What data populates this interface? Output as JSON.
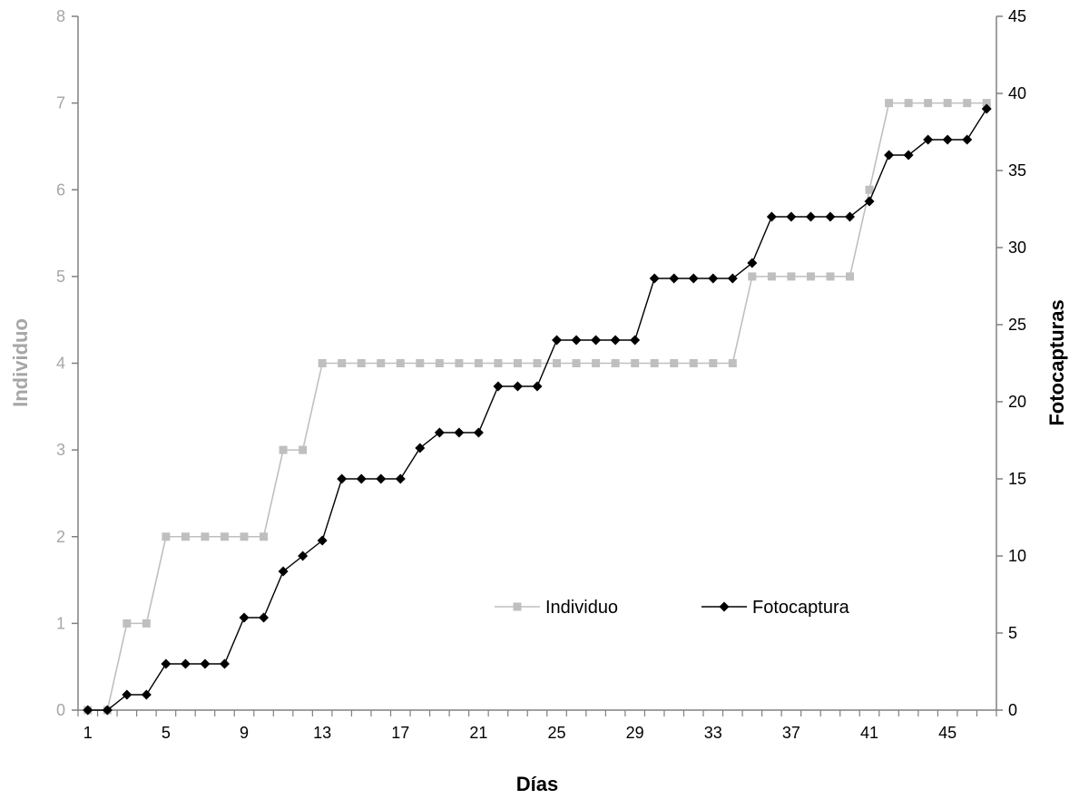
{
  "chart_data": {
    "type": "line",
    "title": "",
    "xlabel": "Días",
    "ylabel_left": "Individuo",
    "ylabel_right": "Fotocapturas",
    "x": [
      1,
      2,
      3,
      4,
      5,
      6,
      7,
      8,
      9,
      10,
      11,
      12,
      13,
      14,
      15,
      16,
      17,
      18,
      19,
      20,
      21,
      22,
      23,
      24,
      25,
      26,
      27,
      28,
      29,
      30,
      31,
      32,
      33,
      34,
      35,
      36,
      37,
      38,
      39,
      40,
      41,
      42,
      43,
      44,
      45,
      46,
      47
    ],
    "x_tick_labels": [
      "1",
      "5",
      "9",
      "13",
      "17",
      "21",
      "25",
      "29",
      "33",
      "37",
      "41",
      "45"
    ],
    "ylim_left": [
      0,
      8
    ],
    "ylim_right": [
      0,
      45
    ],
    "y_left_ticks": [
      "0",
      "1",
      "2",
      "3",
      "4",
      "5",
      "6",
      "7",
      "8"
    ],
    "y_right_ticks": [
      "0",
      "5",
      "10",
      "15",
      "20",
      "25",
      "30",
      "35",
      "40",
      "45"
    ],
    "grid": false,
    "legend_position": "center-right",
    "series": [
      {
        "name": "Individuo",
        "axis": "left",
        "color": "#bfbfbf",
        "marker": "square",
        "values": [
          0,
          0,
          1,
          1,
          2,
          2,
          2,
          2,
          2,
          2,
          3,
          3,
          4,
          4,
          4,
          4,
          4,
          4,
          4,
          4,
          4,
          4,
          4,
          4,
          4,
          4,
          4,
          4,
          4,
          4,
          4,
          4,
          4,
          4,
          5,
          5,
          5,
          5,
          5,
          5,
          6,
          7,
          7,
          7,
          7,
          7,
          7
        ]
      },
      {
        "name": "Fotocaptura",
        "axis": "right",
        "color": "#000000",
        "marker": "diamond",
        "values": [
          0,
          0,
          1,
          1,
          3,
          3,
          3,
          3,
          6,
          6,
          9,
          10,
          11,
          15,
          15,
          15,
          15,
          17,
          18,
          18,
          18,
          21,
          21,
          21,
          24,
          24,
          24,
          24,
          24,
          28,
          28,
          28,
          28,
          28,
          29,
          32,
          32,
          32,
          32,
          32,
          33,
          36,
          36,
          37,
          37,
          37,
          39
        ]
      }
    ],
    "colors": {
      "left_axis_text": "#a6a6a6",
      "right_axis_text": "#000000",
      "axis_line": "#808080"
    }
  }
}
